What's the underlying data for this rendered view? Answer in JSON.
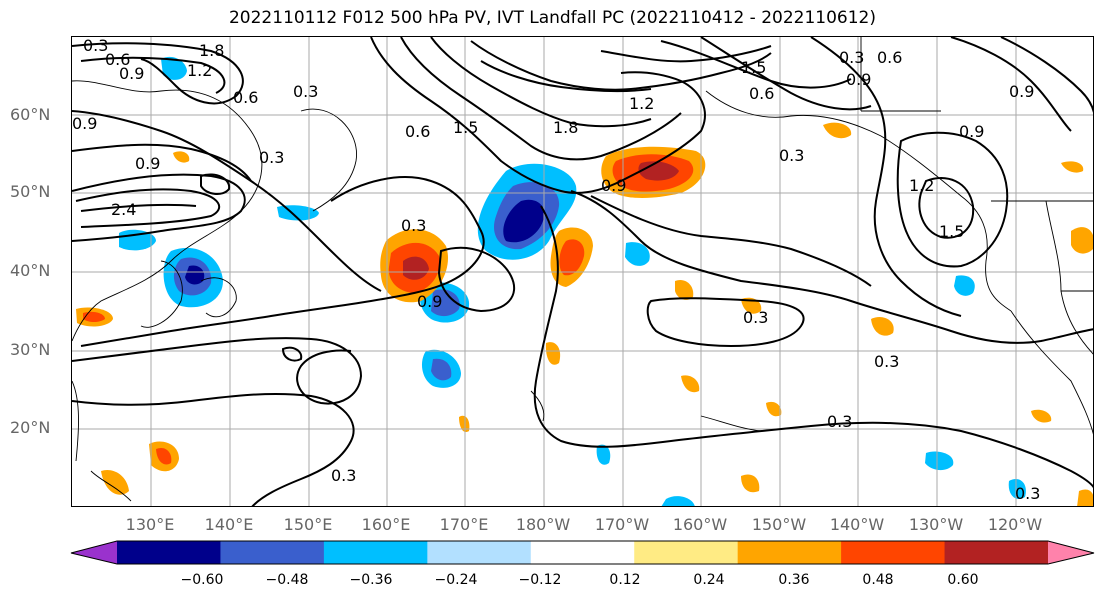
{
  "title": "2022110112 F012 500 hPa PV, IVT Landfall PC (2022110412 - 2022110612)",
  "lat_labels": [
    "60°N",
    "50°N",
    "40°N",
    "30°N",
    "20°N"
  ],
  "lon_labels": [
    "130°E",
    "140°E",
    "150°E",
    "160°E",
    "170°E",
    "180°W",
    "170°W",
    "160°W",
    "150°W",
    "140°W",
    "130°W",
    "120°W"
  ],
  "contour_labels": [
    "0.3",
    "0.6",
    "0.9",
    "1.2",
    "1.8",
    "0.6",
    "0.3",
    "0.9",
    "0.9",
    "2.4",
    "0.3",
    "0.3",
    "0.9",
    "0.6",
    "1.5",
    "1.8",
    "1.2",
    "0.9",
    "0.6",
    "1.5",
    "0.6",
    "0.3",
    "0.9",
    "0.3",
    "0.9",
    "1.2",
    "1.5",
    "0.9",
    "0.3",
    "0.3",
    "0.3",
    "0.3",
    "0.3"
  ],
  "colorbar": {
    "ticks": [
      "−0.60",
      "−0.48",
      "−0.36",
      "−0.24",
      "−0.12",
      "0.12",
      "0.24",
      "0.36",
      "0.48",
      "0.60"
    ],
    "colors": [
      "#9a32cd",
      "#00008b",
      "#3a5fcd",
      "#00bfff",
      "#b2e0ff",
      "#ffffff",
      "#ffeb84",
      "#ffa500",
      "#ff4500",
      "#b22222",
      "#ff82ab"
    ]
  }
}
